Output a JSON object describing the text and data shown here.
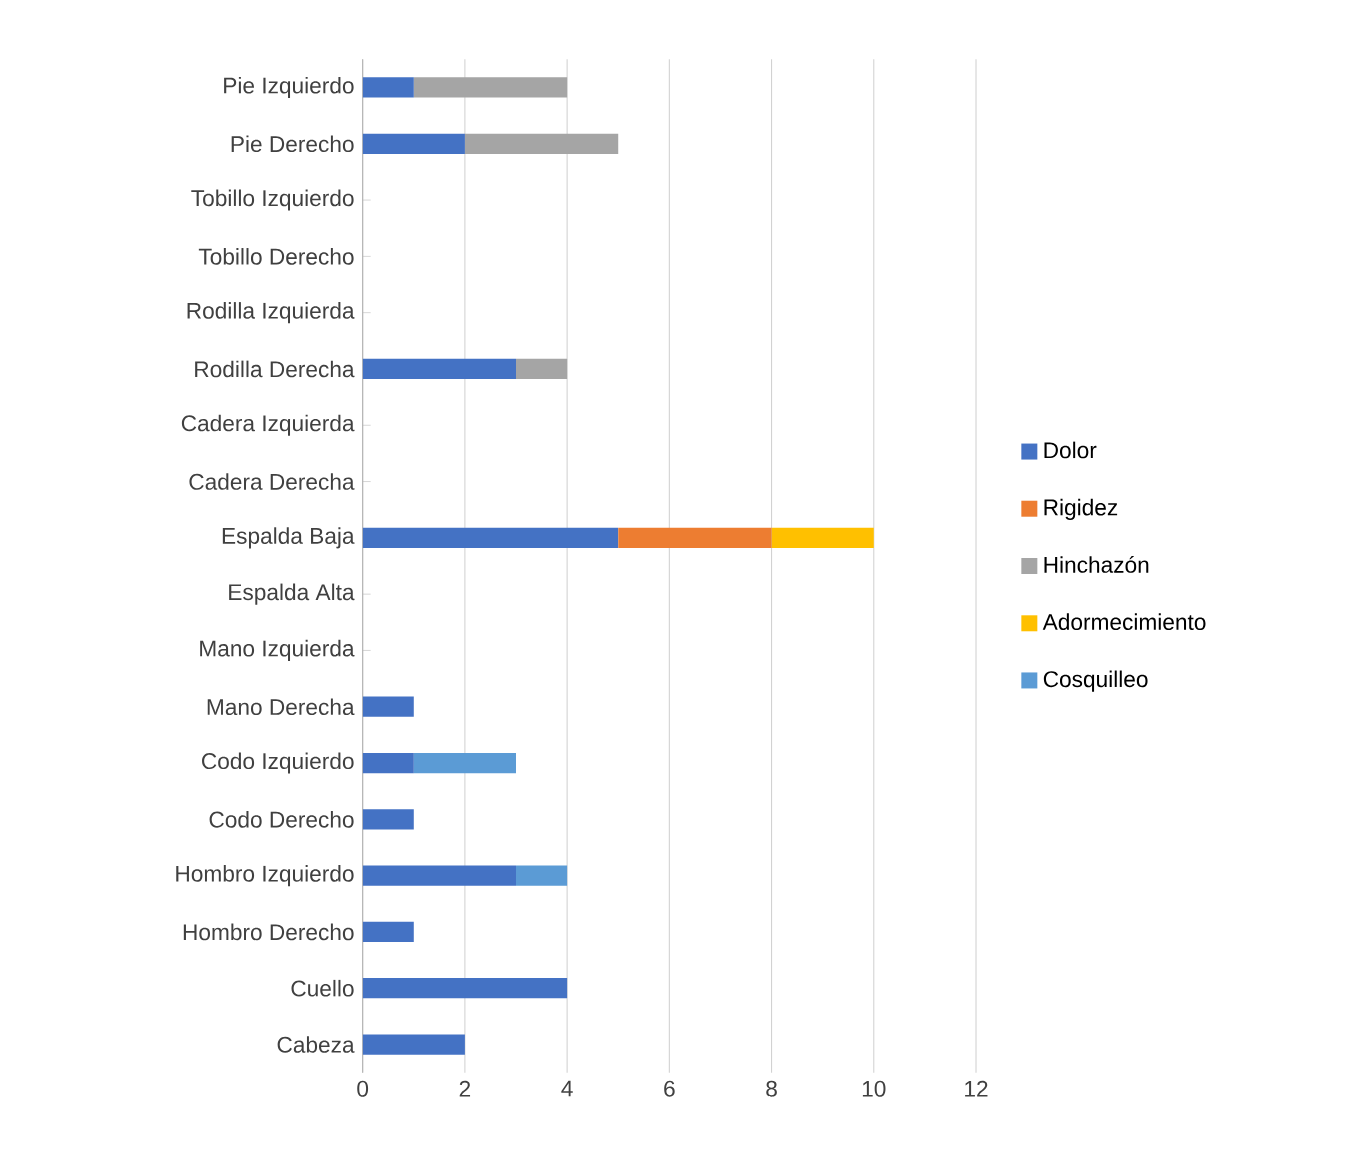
{
  "chart_data": {
    "type": "bar",
    "orientation": "horizontal",
    "stacked": true,
    "categories": [
      "Pie Izquierdo",
      "Pie Derecho",
      "Tobillo Izquierdo",
      "Tobillo Derecho",
      "Rodilla Izquierda",
      "Rodilla Derecha",
      "Cadera Izquierda",
      "Cadera Derecha",
      "Espalda Baja",
      "Espalda Alta",
      "Mano Izquierda",
      "Mano Derecha",
      "Codo Izquierdo",
      "Codo Derecho",
      "Hombro Izquierdo",
      "Hombro Derecho",
      "Cuello",
      "Cabeza"
    ],
    "series": [
      {
        "name": "Dolor",
        "color": "#4472c4",
        "values": [
          1,
          2,
          0,
          0,
          0,
          3,
          0,
          0,
          5,
          0,
          0,
          1,
          1,
          1,
          3,
          1,
          4,
          2
        ]
      },
      {
        "name": "Rigidez",
        "color": "#ed7d31",
        "values": [
          0,
          0,
          0,
          0,
          0,
          0,
          0,
          0,
          3,
          0,
          0,
          0,
          0,
          0,
          0,
          0,
          0,
          0
        ]
      },
      {
        "name": "Hinchazón",
        "color": "#a5a5a5",
        "values": [
          3,
          3,
          0,
          0,
          0,
          1,
          0,
          0,
          0,
          0,
          0,
          0,
          0,
          0,
          0,
          0,
          0,
          0
        ]
      },
      {
        "name": "Adormecimiento",
        "color": "#ffc000",
        "values": [
          0,
          0,
          0,
          0,
          0,
          0,
          0,
          0,
          2,
          0,
          0,
          0,
          0,
          0,
          0,
          0,
          0,
          0
        ]
      },
      {
        "name": "Cosquilleo",
        "color": "#5b9bd5",
        "values": [
          0,
          0,
          0,
          0,
          0,
          0,
          0,
          0,
          0,
          0,
          0,
          0,
          2,
          0,
          1,
          0,
          0,
          0
        ]
      }
    ],
    "xlim": [
      0,
      12
    ],
    "xticks": [
      0,
      2,
      4,
      6,
      8,
      10,
      12
    ],
    "grid": "x",
    "legend": "right"
  }
}
